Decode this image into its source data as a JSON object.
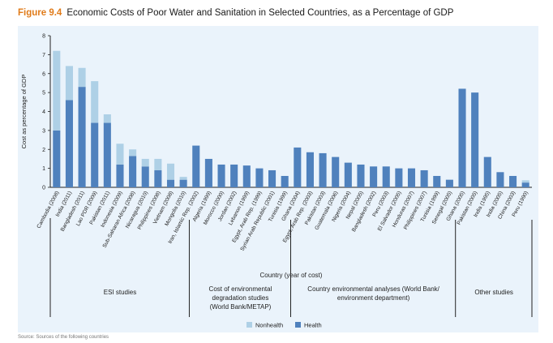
{
  "figure": {
    "label": "Figure 9.4",
    "title": "Economic Costs of Poor Water and Sanitation in Selected Countries, as a Percentage of GDP",
    "footnote": "Source: Sources of the following countries"
  },
  "chart_data": {
    "type": "bar",
    "stacked": true,
    "ylabel": "Cost as percentage of GDP",
    "xlabel": "Country (year of cost)",
    "ylim": [
      0,
      8
    ],
    "yticks": [
      "0",
      "1",
      "2",
      "3",
      "4",
      "5",
      "6",
      "7",
      "8"
    ],
    "categories": [
      "Cambodia (2008)",
      "India (2011)",
      "Bangladesh (2011)",
      "Lao PDR (2009)",
      "Pakistan (2011)",
      "Indonesia (2009)",
      "Sub-Saharan Africa (2008)",
      "Nicaragua (2010)",
      "Philippines (2008)",
      "Vietnam (2008)",
      "Mongolia (2010)",
      "Iran, Islamic Rep. (2002)",
      "Algeria (1999)",
      "Morocco (2000)",
      "Jordan (2002)",
      "Lebanon (1999)",
      "Egypt, Arab Rep. (1999)",
      "Syrian Arab Republic (2001)",
      "Tunisia (1999)",
      "Ghana (2004)",
      "Egypt, Arab Rep. (2003)",
      "Pakistan (2003)",
      "Guatemala (2006)",
      "Nigeria (2004)",
      "Nepal (2005)",
      "Bangladesh (2002)",
      "Peru (2003)",
      "El Salvador (2005)",
      "Honduras (2007)",
      "Philippines (2007)",
      "Tunisia (1999)",
      "Senegal (2005)",
      "Ghana (2005)",
      "Pakistan (2005)",
      "India (1995)",
      "India (2005)",
      "China (2003)",
      "Peru (1990)"
    ],
    "series": [
      {
        "name": "Health",
        "color": "#4f81bd",
        "values": [
          3.0,
          4.6,
          5.3,
          3.4,
          3.4,
          1.2,
          1.65,
          1.1,
          0.9,
          0.4,
          0.4,
          2.2,
          1.5,
          1.2,
          1.2,
          1.15,
          1.0,
          0.9,
          0.6,
          2.1,
          1.85,
          1.8,
          1.6,
          1.3,
          1.2,
          1.1,
          1.1,
          1.0,
          1.0,
          0.9,
          0.6,
          0.4,
          5.2,
          5.0,
          1.6,
          0.8,
          0.6,
          0.25
        ]
      },
      {
        "name": "Nonhealth",
        "color": "#aed0e6",
        "values": [
          4.2,
          1.8,
          1.0,
          2.2,
          0.45,
          1.1,
          0.35,
          0.4,
          0.6,
          0.85,
          0.15,
          0,
          0,
          0,
          0,
          0,
          0,
          0,
          0,
          0,
          0,
          0,
          0,
          0,
          0,
          0,
          0,
          0,
          0,
          0,
          0,
          0,
          0,
          0,
          0,
          0,
          0,
          0.12
        ]
      }
    ],
    "groups": [
      {
        "label": "ESI studies",
        "start": 0,
        "end": 10
      },
      {
        "label": "Cost of environmental degradation studies (World Bank/METAP)",
        "lines": [
          "Cost of environmental",
          "degradation studies",
          "(World Bank/METAP)"
        ],
        "start": 11,
        "end": 18
      },
      {
        "label": "Country environmental analyses (World Bank/ environment department)",
        "lines": [
          "Country environmental analyses (World Bank/",
          "environment department)"
        ],
        "start": 19,
        "end": 31
      },
      {
        "label": "Other studies",
        "start": 32,
        "end": 37
      }
    ],
    "legend": [
      {
        "label": "Nonhealth",
        "color": "#aed0e6"
      },
      {
        "label": "Health",
        "color": "#4f81bd"
      }
    ],
    "legend_position": "bottom-center"
  }
}
